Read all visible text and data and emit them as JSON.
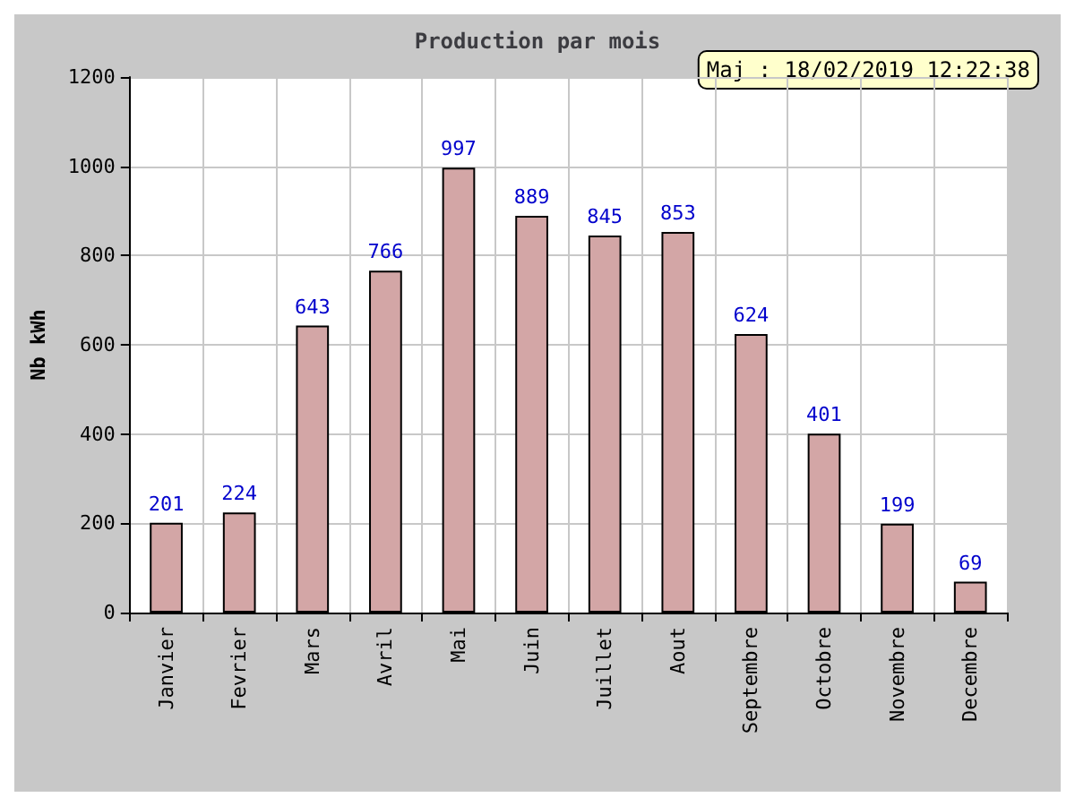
{
  "chart_data": {
    "type": "bar",
    "title": "Production par mois",
    "ylabel": "Nb kWh",
    "categories": [
      "Janvier",
      "Fevrier",
      "Mars",
      "Avril",
      "Mai",
      "Juin",
      "Juillet",
      "Aout",
      "Septembre",
      "Octobre",
      "Novembre",
      "Decembre"
    ],
    "values": [
      201,
      224,
      643,
      766,
      997,
      889,
      845,
      853,
      624,
      401,
      199,
      69
    ],
    "color": "#d3a6a6",
    "ylim": [
      0,
      1200
    ],
    "yticks": [
      0,
      200,
      400,
      600,
      800,
      1000,
      1200
    ],
    "grid": true,
    "data_labels": true,
    "annotations": [
      "Maj : 18/02/2019 12:22:38"
    ]
  }
}
